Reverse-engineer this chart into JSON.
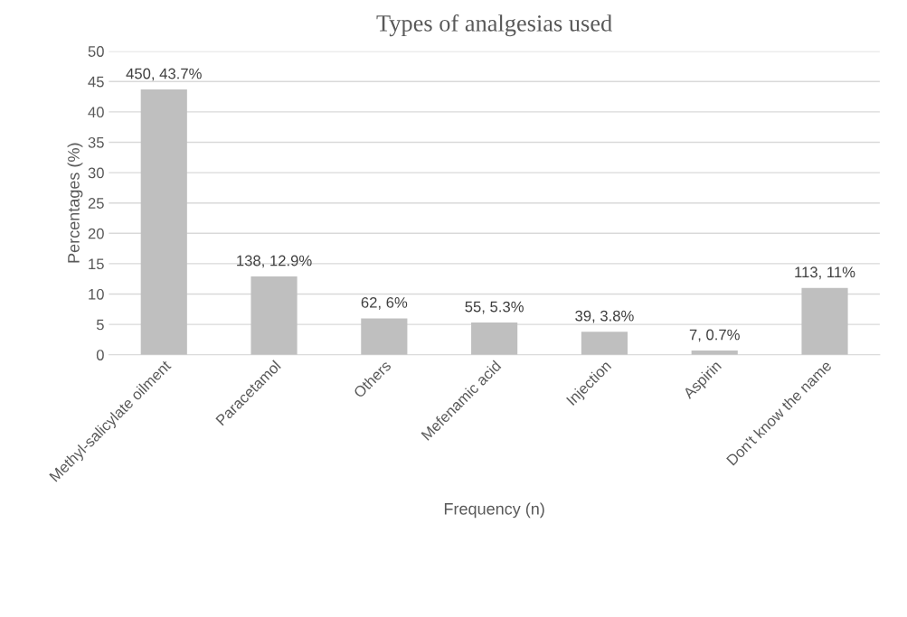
{
  "chart_data": {
    "type": "bar",
    "title": "Types of analgesias used",
    "xlabel": "Frequency (n)",
    "ylabel": "Percentages (%)",
    "categories": [
      "Methyl-salicylate oilment",
      "Paracetamol",
      "Others",
      "Mefenamic acid",
      "Injection",
      "Aspirin",
      "Don't know the name"
    ],
    "values": [
      43.7,
      12.9,
      6,
      5.3,
      3.8,
      0.7,
      11
    ],
    "value_labels": [
      "450, 43.7%",
      "138, 12.9%",
      "62, 6%",
      "55, 5.3%",
      "39, 3.8%",
      "7, 0.7%",
      "113, 11%"
    ],
    "color": "#bfbfbf",
    "ylim": [
      0,
      50
    ],
    "yticks": [
      0,
      5,
      10,
      15,
      20,
      25,
      30,
      35,
      40,
      45,
      50
    ],
    "grid": "y",
    "legend": false
  }
}
